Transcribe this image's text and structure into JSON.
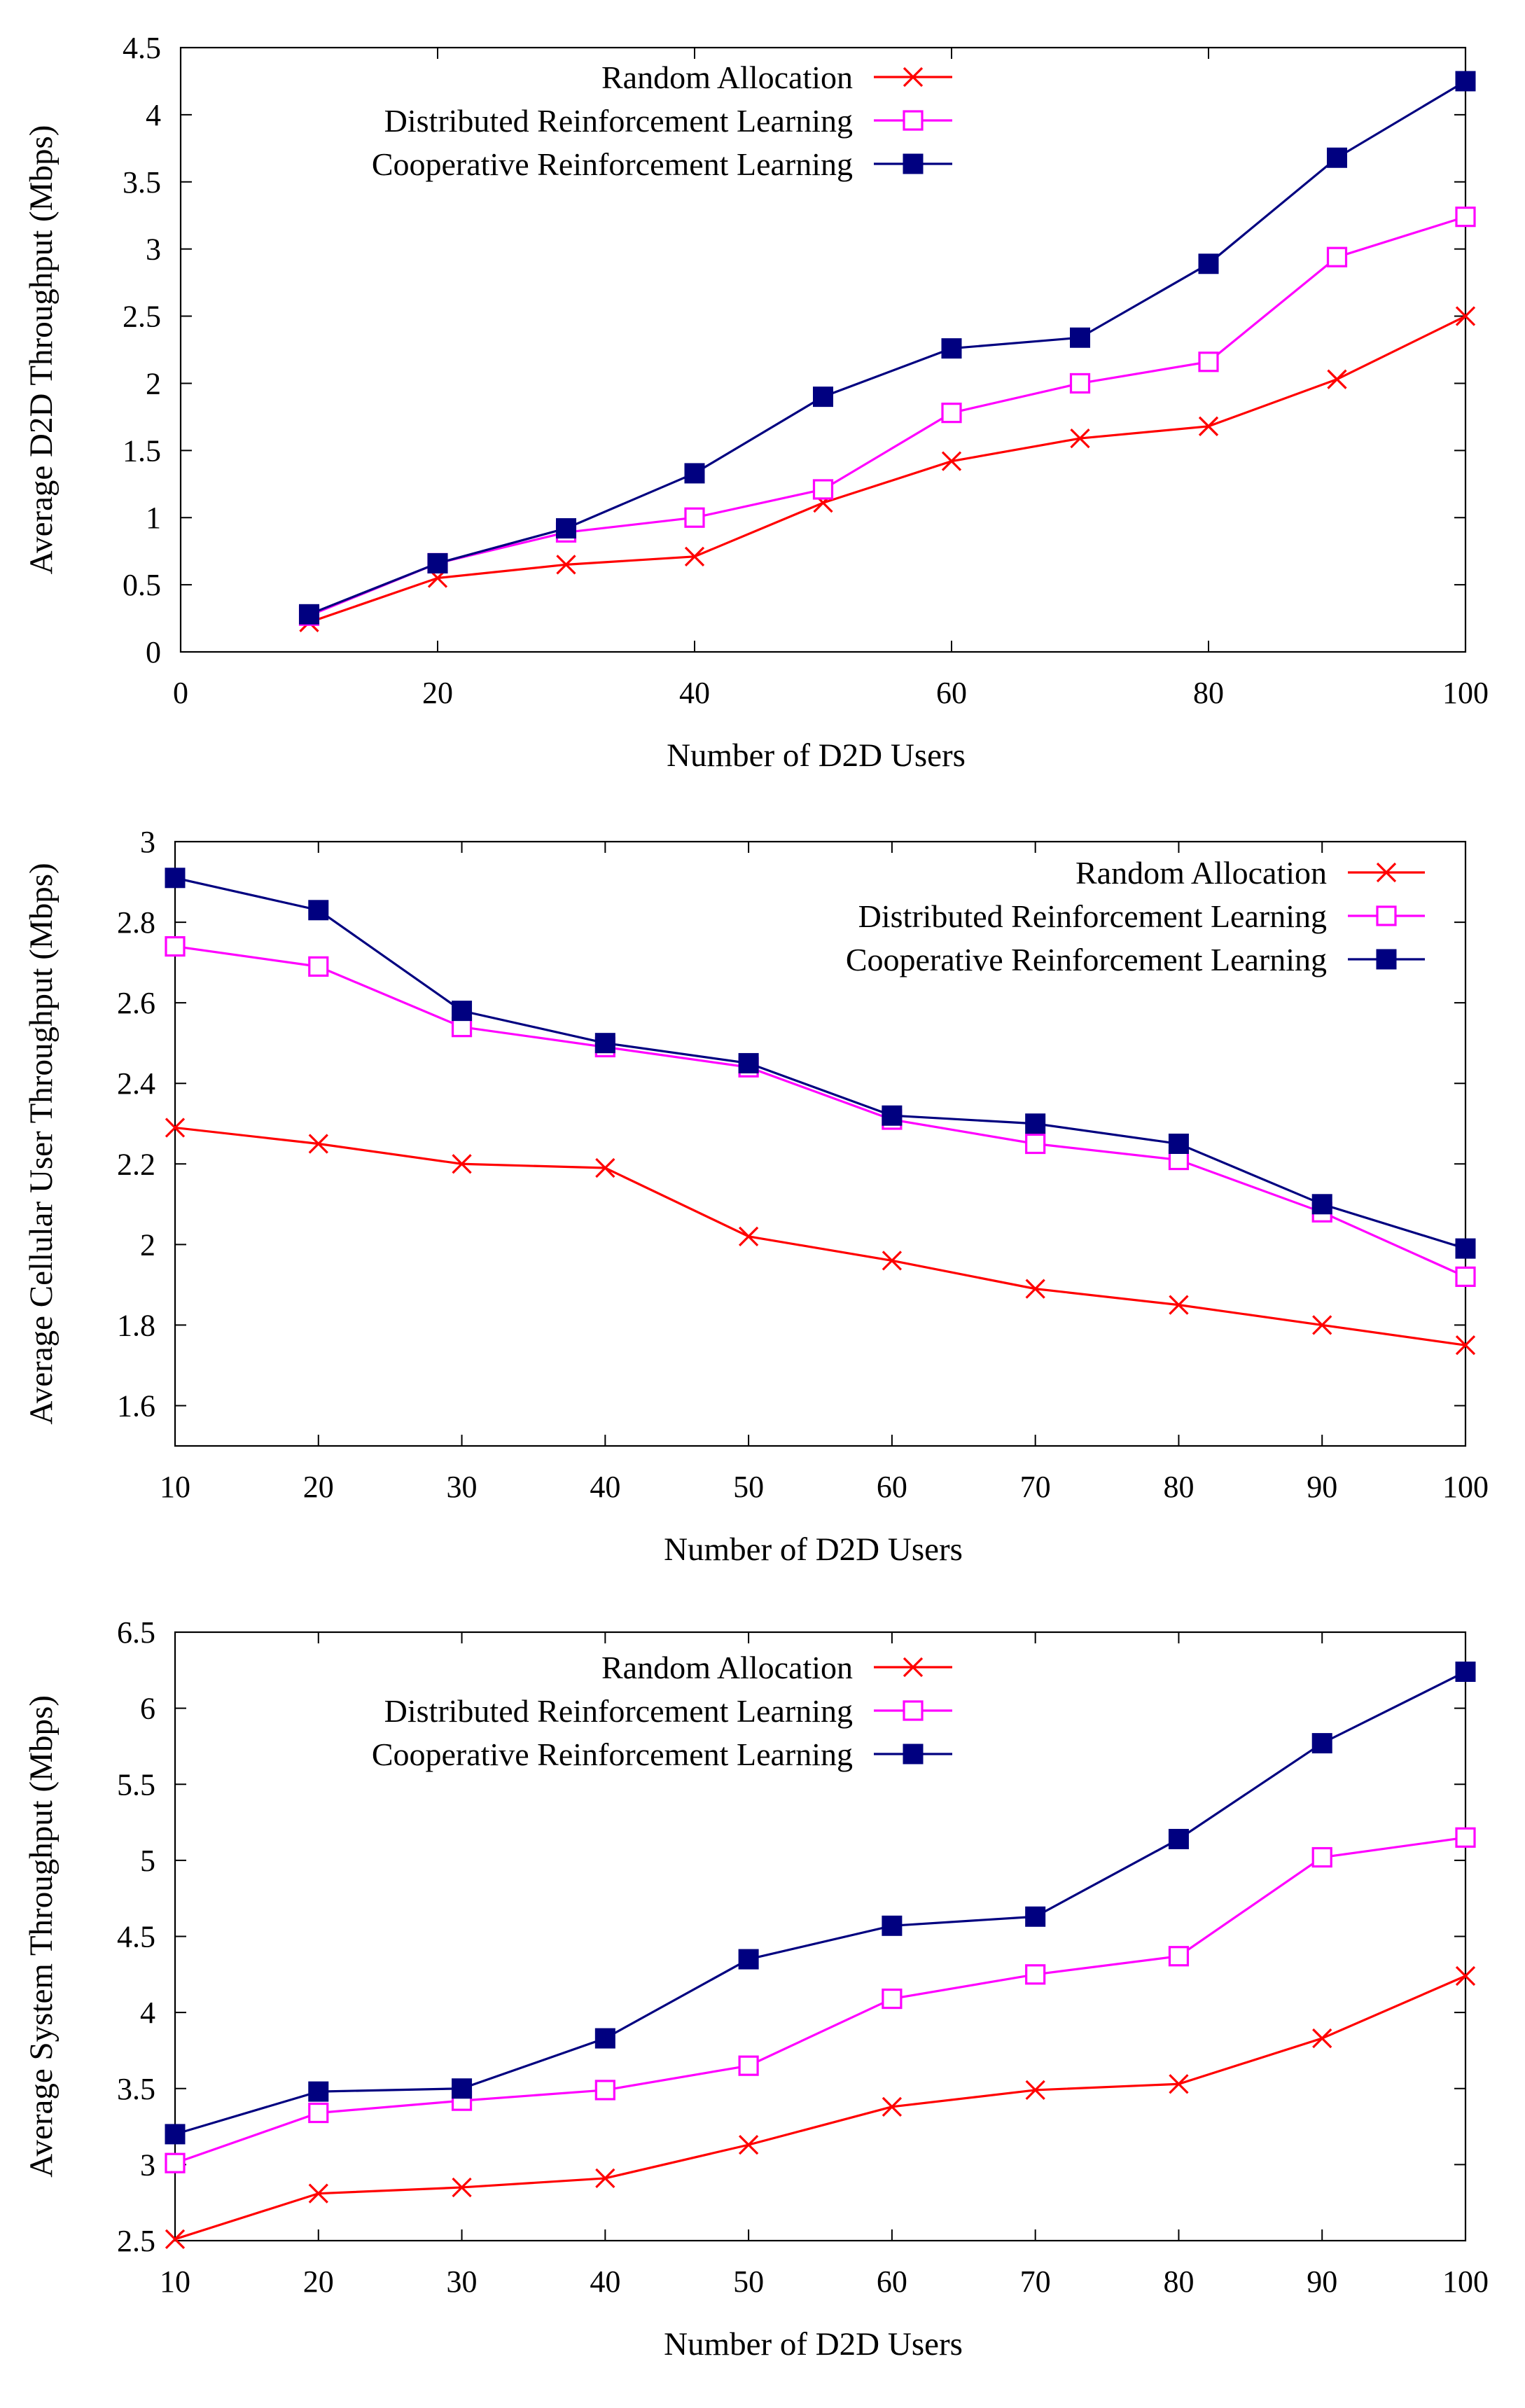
{
  "chart_data": [
    {
      "type": "line",
      "title": "",
      "xlabel": "Number of D2D Users",
      "ylabel": "Average D2D Throughput (Mbps)",
      "xlim": [
        0,
        100
      ],
      "ylim": [
        0,
        4.5
      ],
      "xticks": [
        0,
        20,
        40,
        60,
        80,
        100
      ],
      "yticks": [
        0,
        0.5,
        1,
        1.5,
        2,
        2.5,
        3,
        3.5,
        4,
        4.5
      ],
      "xtick_labels": [
        "0",
        "20",
        "40",
        "60",
        "80",
        "100"
      ],
      "ytick_labels": [
        "0",
        "0.5",
        "1",
        "1.5",
        "2",
        "2.5",
        "3",
        "3.5",
        "4",
        "4.5"
      ],
      "legend_position": "top-right",
      "x": [
        10,
        20,
        30,
        40,
        50,
        60,
        70,
        80,
        90,
        100
      ],
      "series": [
        {
          "name": "Random Allocation",
          "color": "#ff0000",
          "marker": "x",
          "values": [
            0.22,
            0.55,
            0.65,
            0.71,
            1.11,
            1.42,
            1.59,
            1.68,
            2.03,
            2.5
          ]
        },
        {
          "name": "Distributed Reinforcement Learning",
          "color": "#ff00ff",
          "marker": "open-square",
          "values": [
            0.27,
            0.66,
            0.89,
            1.0,
            1.21,
            1.78,
            2.0,
            2.16,
            2.94,
            3.24
          ]
        },
        {
          "name": "Cooperative Reinforcement Learning",
          "color": "#000080",
          "marker": "filled-square",
          "values": [
            0.28,
            0.66,
            0.92,
            1.33,
            1.9,
            2.26,
            2.34,
            2.89,
            3.68,
            4.25
          ]
        }
      ]
    },
    {
      "type": "line",
      "title": "",
      "xlabel": "Number of D2D Users",
      "ylabel": "Average Cellular User Throughput (Mbps)",
      "xlim": [
        10,
        100
      ],
      "ylim": [
        1.5,
        3
      ],
      "xticks": [
        10,
        20,
        30,
        40,
        50,
        60,
        70,
        80,
        90,
        100
      ],
      "yticks": [
        1.6,
        1.8,
        2,
        2.2,
        2.4,
        2.6,
        2.8,
        3
      ],
      "xtick_labels": [
        "10",
        "20",
        "30",
        "40",
        "50",
        "60",
        "70",
        "80",
        "90",
        "100"
      ],
      "ytick_labels": [
        "1.6",
        "1.8",
        "2",
        "2.2",
        "2.4",
        "2.6",
        "2.8",
        "3"
      ],
      "legend_position": "top-right",
      "x": [
        10,
        20,
        30,
        40,
        50,
        60,
        70,
        80,
        90,
        100
      ],
      "series": [
        {
          "name": "Random Allocation",
          "color": "#ff0000",
          "marker": "x",
          "values": [
            2.29,
            2.25,
            2.2,
            2.19,
            2.02,
            1.96,
            1.89,
            1.85,
            1.8,
            1.75
          ]
        },
        {
          "name": "Distributed Reinforcement Learning",
          "color": "#ff00ff",
          "marker": "open-square",
          "values": [
            2.74,
            2.69,
            2.54,
            2.49,
            2.44,
            2.31,
            2.25,
            2.21,
            2.08,
            1.92
          ]
        },
        {
          "name": "Cooperative Reinforcement Learning",
          "color": "#000080",
          "marker": "filled-square",
          "values": [
            2.91,
            2.83,
            2.58,
            2.5,
            2.45,
            2.32,
            2.3,
            2.25,
            2.1,
            1.99
          ]
        }
      ]
    },
    {
      "type": "line",
      "title": "",
      "xlabel": "Number of D2D Users",
      "ylabel": "Average System Throughput (Mbps)",
      "xlim": [
        10,
        100
      ],
      "ylim": [
        2.5,
        6.5
      ],
      "xticks": [
        10,
        20,
        30,
        40,
        50,
        60,
        70,
        80,
        90,
        100
      ],
      "yticks": [
        2.5,
        3,
        3.5,
        4,
        4.5,
        5,
        5.5,
        6,
        6.5
      ],
      "xtick_labels": [
        "10",
        "20",
        "30",
        "40",
        "50",
        "60",
        "70",
        "80",
        "90",
        "100"
      ],
      "ytick_labels": [
        "2.5",
        "3",
        "3.5",
        "4",
        "4.5",
        "5",
        "5.5",
        "6",
        "6.5"
      ],
      "legend_position": "top-right",
      "x": [
        10,
        20,
        30,
        40,
        50,
        60,
        70,
        80,
        90,
        100
      ],
      "series": [
        {
          "name": "Random Allocation",
          "color": "#ff0000",
          "marker": "x",
          "values": [
            2.51,
            2.81,
            2.85,
            2.91,
            3.13,
            3.38,
            3.49,
            3.53,
            3.83,
            4.24
          ]
        },
        {
          "name": "Distributed Reinforcement Learning",
          "color": "#ff00ff",
          "marker": "open-square",
          "values": [
            3.01,
            3.34,
            3.42,
            3.49,
            3.65,
            4.09,
            4.25,
            4.37,
            5.02,
            5.15
          ]
        },
        {
          "name": "Cooperative Reinforcement Learning",
          "color": "#000080",
          "marker": "filled-square",
          "values": [
            3.2,
            3.48,
            3.5,
            3.83,
            4.35,
            4.57,
            4.63,
            5.14,
            5.77,
            6.24
          ]
        }
      ]
    }
  ]
}
